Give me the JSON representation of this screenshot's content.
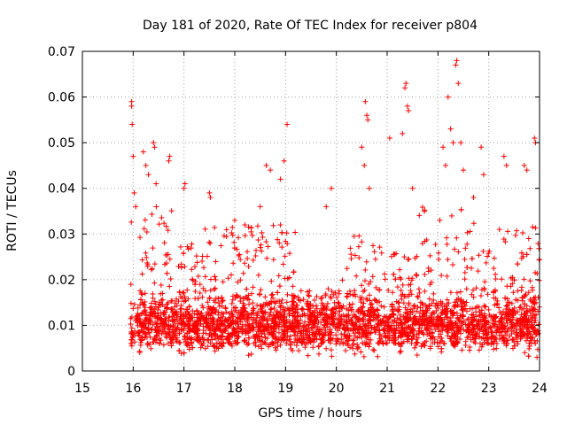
{
  "chart_data": {
    "type": "scatter",
    "title": "Day 181 of 2020, Rate Of TEC Index for receiver p804",
    "xlabel": "GPS time / hours",
    "ylabel": "ROTI / TECUs",
    "xlim": [
      15,
      24
    ],
    "ylim": [
      0,
      0.07
    ],
    "xticks": [
      15,
      16,
      17,
      18,
      19,
      20,
      21,
      22,
      23,
      24
    ],
    "yticks": [
      0,
      0.01,
      0.02,
      0.03,
      0.04,
      0.05,
      0.06,
      0.07
    ],
    "xtick_labels": [
      "15",
      "16",
      "17",
      "18",
      "19",
      "20",
      "21",
      "22",
      "23",
      "24"
    ],
    "ytick_labels": [
      "0",
      "0.01",
      "0.02",
      "0.03",
      "0.04",
      "0.05",
      "0.06",
      "0.07"
    ],
    "grid": true,
    "marker": "+",
    "color": "#ff0000",
    "series": [
      {
        "name": "ROTI",
        "x_range": [
          15.95,
          24.0
        ],
        "typical_range": [
          0.005,
          0.015
        ],
        "points": [
          [
            15.97,
            0.059
          ],
          [
            15.97,
            0.058
          ],
          [
            15.98,
            0.054
          ],
          [
            16.0,
            0.047
          ],
          [
            16.02,
            0.039
          ],
          [
            16.05,
            0.036
          ],
          [
            16.2,
            0.048
          ],
          [
            16.25,
            0.045
          ],
          [
            16.3,
            0.043
          ],
          [
            16.4,
            0.05
          ],
          [
            16.42,
            0.049
          ],
          [
            16.45,
            0.041
          ],
          [
            16.7,
            0.046
          ],
          [
            16.72,
            0.047
          ],
          [
            17.0,
            0.04
          ],
          [
            17.02,
            0.041
          ],
          [
            17.5,
            0.039
          ],
          [
            17.52,
            0.038
          ],
          [
            18.0,
            0.033
          ],
          [
            18.2,
            0.032
          ],
          [
            18.5,
            0.036
          ],
          [
            18.62,
            0.045
          ],
          [
            18.7,
            0.044
          ],
          [
            18.9,
            0.042
          ],
          [
            18.97,
            0.046
          ],
          [
            19.03,
            0.054
          ],
          [
            19.8,
            0.036
          ],
          [
            19.9,
            0.04
          ],
          [
            20.5,
            0.049
          ],
          [
            20.55,
            0.045
          ],
          [
            20.57,
            0.059
          ],
          [
            20.6,
            0.056
          ],
          [
            20.62,
            0.055
          ],
          [
            20.65,
            0.04
          ],
          [
            21.05,
            0.051
          ],
          [
            21.3,
            0.052
          ],
          [
            21.35,
            0.062
          ],
          [
            21.37,
            0.063
          ],
          [
            21.4,
            0.058
          ],
          [
            21.42,
            0.057
          ],
          [
            21.5,
            0.04
          ],
          [
            22.1,
            0.049
          ],
          [
            22.15,
            0.045
          ],
          [
            22.2,
            0.06
          ],
          [
            22.25,
            0.053
          ],
          [
            22.3,
            0.05
          ],
          [
            22.35,
            0.067
          ],
          [
            22.37,
            0.068
          ],
          [
            22.4,
            0.063
          ],
          [
            22.45,
            0.05
          ],
          [
            22.5,
            0.044
          ],
          [
            22.7,
            0.038
          ],
          [
            22.85,
            0.049
          ],
          [
            22.9,
            0.043
          ],
          [
            23.3,
            0.047
          ],
          [
            23.35,
            0.045
          ],
          [
            23.7,
            0.045
          ],
          [
            23.75,
            0.044
          ],
          [
            23.9,
            0.051
          ],
          [
            23.92,
            0.05
          ],
          [
            23.95,
            0.003
          ]
        ]
      }
    ]
  }
}
